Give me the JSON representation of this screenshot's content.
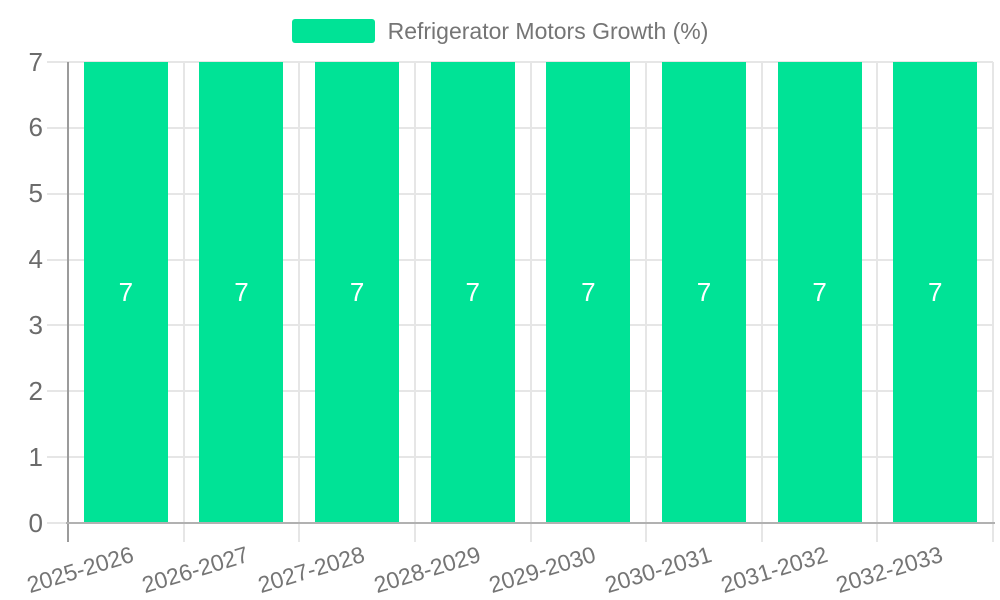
{
  "chart_data": {
    "type": "bar",
    "title": "Refrigerator Motors Growth (%)",
    "categories": [
      "2025-2026",
      "2026-2027",
      "2027-2028",
      "2028-2029",
      "2029-2030",
      "2030-2031",
      "2031-2032",
      "2032-2033"
    ],
    "series": [
      {
        "name": "Refrigerator Motors Growth (%)",
        "values": [
          7,
          7,
          7,
          7,
          7,
          7,
          7,
          7
        ]
      }
    ],
    "value_labels": [
      "7",
      "7",
      "7",
      "7",
      "7",
      "7",
      "7",
      "7"
    ],
    "xlabel": "",
    "ylabel": "",
    "ylim": [
      0,
      7
    ],
    "yticks": [
      0,
      1,
      2,
      3,
      4,
      5,
      6,
      7
    ],
    "grid": "on",
    "legend_position": "top-center",
    "legend": [
      {
        "label": "Refrigerator Motors Growth (%)",
        "color": "#00E396"
      }
    ],
    "colors": {
      "bar_fill": "#00E396",
      "bar_value_text": "#ffffff",
      "gridline": "#e6e6e6",
      "y_axis_line": "#9b9b9b",
      "x_axis_line": "#b1b1b1",
      "axis_label_text": "#6b6b6b",
      "category_label_text": "#757575",
      "legend_text": "#757575",
      "background": "#ffffff"
    }
  }
}
